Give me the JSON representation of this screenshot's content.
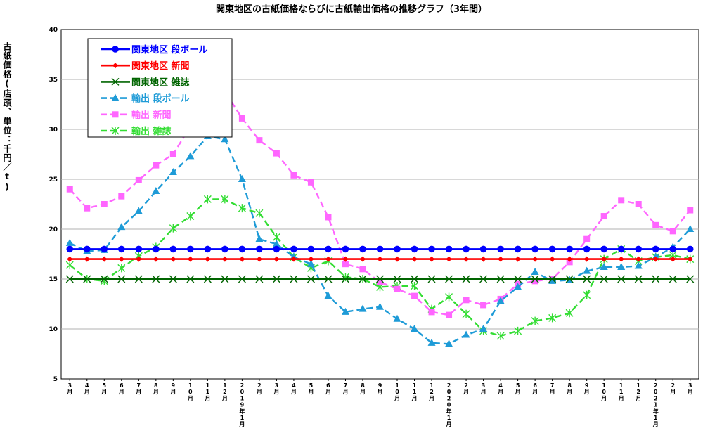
{
  "chart_data": {
    "type": "line",
    "title": "関東地区の古紙価格ならびに古紙輸出価格の推移グラフ（3年間）",
    "ylabel": "古紙価格(店頭、単位：千円／t)",
    "xlabel": "",
    "ylim": [
      5,
      40
    ],
    "yticks": [
      5,
      10,
      15,
      20,
      25,
      30,
      35,
      40
    ],
    "grid": true,
    "legend_position": "top-left",
    "categories": [
      "3月",
      "4月",
      "5月",
      "6月",
      "7月",
      "8月",
      "9月",
      "10月",
      "11月",
      "12月",
      "2019年1月",
      "2月",
      "3月",
      "4月",
      "5月",
      "6月",
      "7月",
      "8月",
      "9月",
      "10月",
      "11月",
      "12月",
      "2020年1月",
      "2月",
      "3月",
      "4月",
      "5月",
      "6月",
      "7月",
      "8月",
      "9月",
      "10月",
      "11月",
      "12月",
      "2021年1月",
      "2月",
      "3月"
    ],
    "series": [
      {
        "name": "関東地区 段ボール",
        "color": "#0000ff",
        "style": "solid",
        "marker": "circle",
        "values": [
          18,
          18,
          18,
          18,
          18,
          18,
          18,
          18,
          18,
          18,
          18,
          18,
          18,
          18,
          18,
          18,
          18,
          18,
          18,
          18,
          18,
          18,
          18,
          18,
          18,
          18,
          18,
          18,
          18,
          18,
          18,
          18,
          18,
          18,
          18,
          18,
          18
        ]
      },
      {
        "name": "関東地区 新聞",
        "color": "#ff0000",
        "style": "solid",
        "marker": "diamond",
        "values": [
          17,
          17,
          17,
          17,
          17,
          17,
          17,
          17,
          17,
          17,
          17,
          17,
          17,
          17,
          17,
          17,
          17,
          17,
          17,
          17,
          17,
          17,
          17,
          17,
          17,
          17,
          17,
          17,
          17,
          17,
          17,
          17,
          17,
          17,
          17,
          17,
          17
        ]
      },
      {
        "name": "関東地区 雑誌",
        "color": "#006400",
        "style": "solid",
        "marker": "x",
        "values": [
          15,
          15,
          15,
          15,
          15,
          15,
          15,
          15,
          15,
          15,
          15,
          15,
          15,
          15,
          15,
          15,
          15,
          15,
          15,
          15,
          15,
          15,
          15,
          15,
          15,
          15,
          15,
          15,
          15,
          15,
          15,
          15,
          15,
          15,
          15,
          15,
          15
        ]
      },
      {
        "name": "輸出 段ボール",
        "color": "#1e9bd7",
        "style": "dashed",
        "marker": "triangle",
        "values": [
          18.6,
          17.8,
          17.9,
          20.2,
          21.8,
          23.8,
          25.7,
          27.3,
          29.3,
          29.0,
          25.0,
          19.0,
          18.5,
          17.2,
          16.5,
          13.3,
          11.7,
          12.0,
          12.2,
          11.0,
          10.0,
          8.6,
          8.5,
          9.4,
          10.0,
          12.8,
          14.2,
          15.7,
          14.8,
          14.9,
          15.8,
          16.2,
          16.2,
          16.3,
          17.2,
          18.2,
          20.0
        ]
      },
      {
        "name": "輸出 新聞",
        "color": "#ff66ff",
        "style": "dashed",
        "marker": "square",
        "values": [
          24.0,
          22.1,
          22.5,
          23.3,
          24.9,
          26.4,
          27.5,
          30.3,
          33.3,
          33.8,
          31.1,
          28.9,
          27.6,
          25.4,
          24.7,
          21.2,
          16.5,
          16.0,
          14.7,
          14.0,
          13.3,
          11.7,
          11.4,
          12.9,
          12.4,
          13.0,
          14.5,
          14.8,
          15.0,
          16.7,
          19.0,
          21.3,
          22.9,
          22.5,
          20.4,
          19.8,
          21.9
        ]
      },
      {
        "name": "輸出 雑誌",
        "color": "#33dd33",
        "style": "dashed",
        "marker": "asterisk",
        "values": [
          16.4,
          15.0,
          14.8,
          16.1,
          17.3,
          18.2,
          20.1,
          21.3,
          23.0,
          23.0,
          22.1,
          21.6,
          19.2,
          17.2,
          16.1,
          16.8,
          15.2,
          15.0,
          14.2,
          14.3,
          14.3,
          12.0,
          13.2,
          11.5,
          9.8,
          9.3,
          9.8,
          10.8,
          11.1,
          11.6,
          13.4,
          17.0,
          18.0,
          16.8,
          17.2,
          17.4,
          17.0
        ]
      }
    ]
  }
}
